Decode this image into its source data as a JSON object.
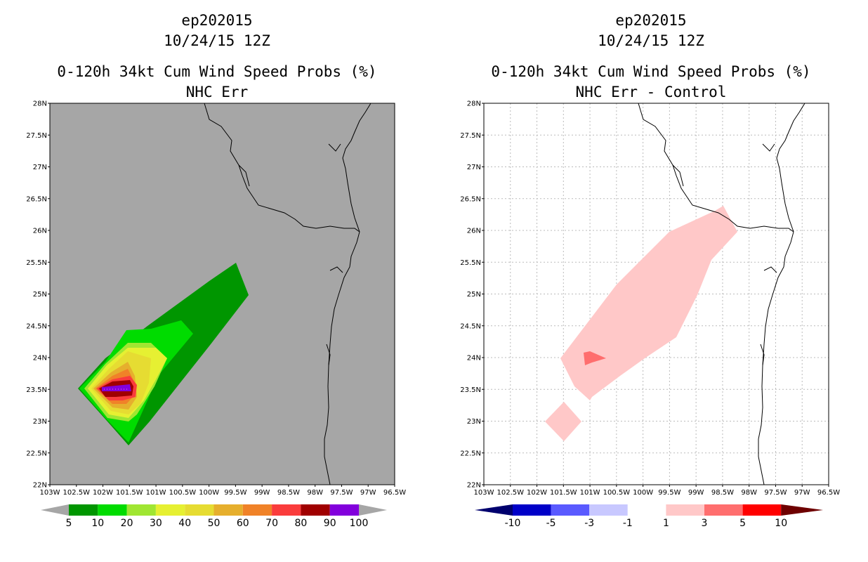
{
  "left": {
    "title_storm": "ep202015",
    "title_time": "10/24/15 12Z",
    "title_product": "0-120h 34kt Cum Wind Speed Probs (%)",
    "title_sub": "NHC Err",
    "lat_labels": [
      "28N",
      "27.5N",
      "27N",
      "26.5N",
      "26N",
      "25.5N",
      "25N",
      "24.5N",
      "24N",
      "23.5N",
      "23N",
      "22.5N",
      "22N"
    ],
    "lon_labels": [
      "103W",
      "102.5W",
      "102W",
      "101.5W",
      "101W",
      "100.5W",
      "100W",
      "99.5W",
      "99W",
      "98.5W",
      "98W",
      "97.5W",
      "97W",
      "96.5W"
    ],
    "colorbar_labels": [
      "5",
      "10",
      "20",
      "30",
      "40",
      "50",
      "60",
      "70",
      "80",
      "90",
      "100"
    ],
    "colors": {
      "background": "#a6a6a6",
      "bins": [
        "#009600",
        "#00dc00",
        "#a0e632",
        "#e6f032",
        "#e6dc32",
        "#e6af2d",
        "#f08228",
        "#fa3c3c",
        "#a00000",
        "#8200dc"
      ],
      "end": "#a6a6a6"
    }
  },
  "right": {
    "title_storm": "ep202015",
    "title_time": "10/24/15 12Z",
    "title_product": "0-120h 34kt Cum Wind Speed Probs (%)",
    "title_sub": "NHC Err - Control",
    "lat_labels": [
      "28N",
      "27.5N",
      "27N",
      "26.5N",
      "26N",
      "25.5N",
      "25N",
      "24.5N",
      "24N",
      "23.5N",
      "23N",
      "22.5N",
      "22N"
    ],
    "lon_labels": [
      "103W",
      "102.5W",
      "102W",
      "101.5W",
      "101W",
      "100.5W",
      "100W",
      "99.5W",
      "99W",
      "98.5W",
      "98W",
      "97.5W",
      "97W",
      "96.5W"
    ],
    "colorbar_labels": [
      "-10",
      "-5",
      "-3",
      "-1",
      "1",
      "3",
      "5",
      "10"
    ],
    "colors": {
      "background": "#ffffff",
      "bins": [
        "#0000c8",
        "#5a5aff",
        "#c8c8ff",
        "#ffffff",
        "#ffc8c8",
        "#ff6e6e",
        "#ff0000"
      ],
      "end_low": "#00006e",
      "end_high": "#6e0000"
    }
  }
}
